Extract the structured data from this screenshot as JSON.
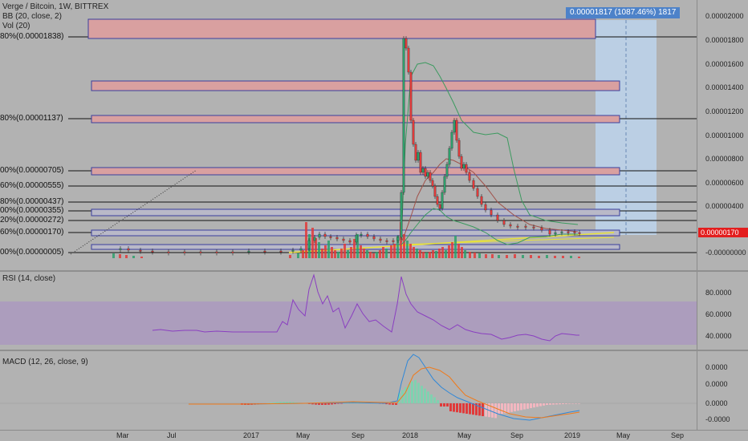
{
  "header": {
    "symbol_title": "Verge / Bitcoin, 1W, BITTREX",
    "bb_label": "BB (20, close, 2)",
    "vol_label": "Vol (20)"
  },
  "measure_tag": "0.00001817 (1087.46%) 1817",
  "price_tag": "0.00000170",
  "fib_labels": [
    "80%(0.00001838)",
    "80%(0.00001137)",
    "00%(0.00000705)",
    "60%(0.00000555)",
    "80%(0.00000437)",
    "00%(0.00000355)",
    "20%(0.00000272)",
    "60%(0.00000170)",
    "00%(0.00000005)"
  ],
  "price_axis": [
    "0.00002000",
    "0.00001800",
    "0.00001600",
    "0.00001400",
    "0.00001200",
    "0.00001000",
    "0.00000800",
    "0.00000600",
    "0.00000400",
    "-0.00000000"
  ],
  "rsi": {
    "label": "RSI (14, close)",
    "ticks": [
      "80.0000",
      "60.0000",
      "40.0000"
    ]
  },
  "macd": {
    "label": "MACD (12, 26, close, 9)",
    "ticks": [
      "0.0000",
      "0.0000",
      "0.0000",
      "-0.0000"
    ]
  },
  "time_axis": [
    "Mar",
    "Jul",
    "2017",
    "May",
    "Sep",
    "2018",
    "May",
    "Sep",
    "2019",
    "May",
    "Sep"
  ],
  "colors": {
    "bg": "#b2b2b2",
    "up": "#2e9f6b",
    "down": "#e03a3a",
    "fib_fill": "#d48e8e",
    "fib_border": "#3a3f9e",
    "bb": "#3c9a5f",
    "rsi": "#8a3fc0",
    "rsi_band": "#a98fc4",
    "macd_line": "#2f87d8",
    "signal_line": "#f07a1a",
    "measure_tag": "#4d82c9",
    "price_tag": "#e31e1e"
  }
}
